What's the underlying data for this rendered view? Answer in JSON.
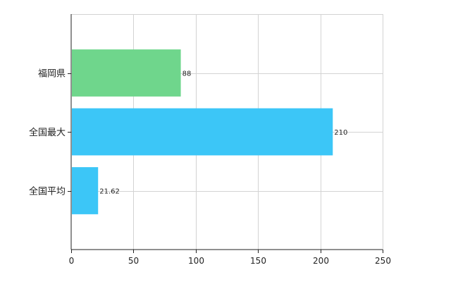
{
  "chart_data": {
    "type": "bar",
    "orientation": "horizontal",
    "categories": [
      "福岡県",
      "全国最大",
      "全国平均"
    ],
    "values": [
      88,
      210,
      21.62
    ],
    "value_labels": [
      "88",
      "210",
      "21.62"
    ],
    "bar_colors": [
      "#6fd68c",
      "#3cc6f7",
      "#3cc6f7"
    ],
    "xlim": [
      0,
      250
    ],
    "xticks": [
      0,
      50,
      100,
      150,
      200,
      250
    ],
    "xtick_labels": [
      "0",
      "50",
      "100",
      "150",
      "200",
      "250"
    ],
    "grid": true,
    "title": "",
    "xlabel": "",
    "ylabel": ""
  }
}
